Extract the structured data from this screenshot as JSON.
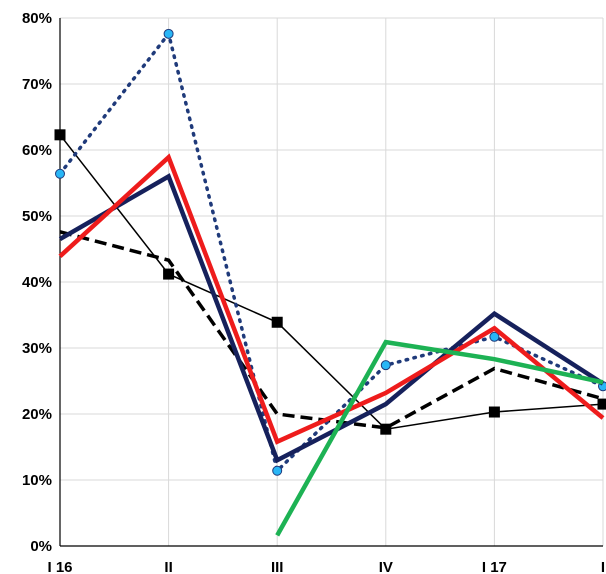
{
  "chart_data": {
    "type": "line",
    "title": "",
    "xlabel": "",
    "ylabel": "",
    "categories": [
      "I 16",
      "II",
      "III",
      "IV",
      "I 17",
      "I"
    ],
    "y_ticks": [
      "0%",
      "10%",
      "20%",
      "30%",
      "40%",
      "50%",
      "60%",
      "70%",
      "80%"
    ],
    "ylim": [
      0,
      80
    ],
    "grid": true,
    "legend": "none",
    "series": [
      {
        "color": "#000000",
        "style": "solid-thin",
        "marker": "square",
        "values": [
          62.3,
          41.2,
          33.9,
          17.7,
          20.3,
          21.5
        ]
      },
      {
        "color": "#000000",
        "style": "dashed",
        "marker": "none",
        "values": [
          47.6,
          43.3,
          20.0,
          17.9,
          26.9,
          22.3
        ]
      },
      {
        "color": "#1F3A7A",
        "style": "dotted",
        "marker": "circle",
        "marker_color": "#29B6F6",
        "values": [
          56.4,
          77.6,
          11.4,
          27.4,
          31.7,
          24.2
        ]
      },
      {
        "color": "#16215C",
        "style": "solid-thick",
        "marker": "none",
        "values": [
          46.5,
          56.0,
          13.0,
          21.5,
          35.2,
          24.6
        ]
      },
      {
        "color": "#EE1C1C",
        "style": "solid-thick",
        "marker": "none",
        "values": [
          43.9,
          58.9,
          15.8,
          23.2,
          33.0,
          19.4
        ]
      },
      {
        "color": "#1DB254",
        "style": "solid-thick",
        "marker": "none",
        "values": [
          null,
          null,
          1.6,
          30.9,
          28.3,
          24.8
        ]
      }
    ]
  }
}
